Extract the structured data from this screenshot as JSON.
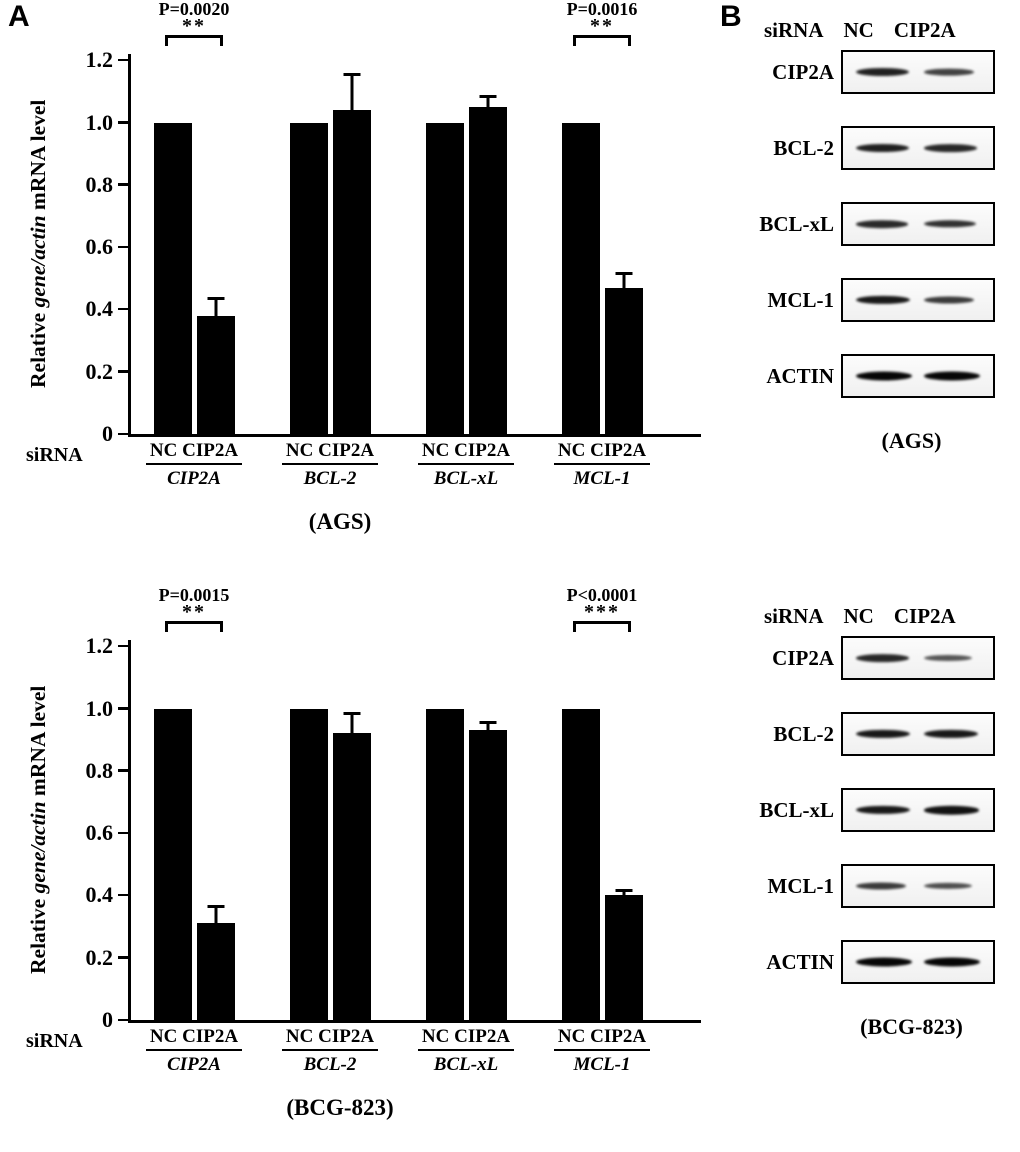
{
  "figure": {
    "panel_a_label": "A",
    "panel_b_label": "B"
  },
  "chart_data": [
    {
      "type": "bar",
      "cell_line": "AGS",
      "title": "(AGS)",
      "ylabel": {
        "pre": "Relative ",
        "italic": "gene/actin",
        "post": " mRNA level"
      },
      "ylim": [
        0,
        1.22
      ],
      "grid": false,
      "bar_color": "#000000",
      "yticks": [
        {
          "v": 0,
          "label": "0"
        },
        {
          "v": 0.2,
          "label": "0.2"
        },
        {
          "v": 0.4,
          "label": "0.4"
        },
        {
          "v": 0.6,
          "label": "0.6"
        },
        {
          "v": 0.8,
          "label": "0.8"
        },
        {
          "v": 1.0,
          "label": "1.0"
        },
        {
          "v": 1.2,
          "label": "1.2"
        }
      ],
      "xaxis_prefix": "siRNA",
      "bar_labels": [
        "NC",
        "CIP2A"
      ],
      "groups": [
        {
          "gene": "CIP2A",
          "values": [
            1.0,
            0.38
          ],
          "errors": [
            0,
            0.05
          ],
          "p_label": "P=0.0020",
          "stars": "**"
        },
        {
          "gene": "BCL-2",
          "values": [
            1.0,
            1.04
          ],
          "errors": [
            0,
            0.11
          ],
          "p_label": "",
          "stars": ""
        },
        {
          "gene": "BCL-xL",
          "values": [
            1.0,
            1.05
          ],
          "errors": [
            0,
            0.03
          ],
          "p_label": "",
          "stars": ""
        },
        {
          "gene": "MCL-1",
          "values": [
            1.0,
            0.47
          ],
          "errors": [
            0,
            0.04
          ],
          "p_label": "P=0.0016",
          "stars": "**"
        }
      ]
    },
    {
      "type": "bar",
      "cell_line": "BCG-823",
      "title": "(BCG-823)",
      "ylabel": {
        "pre": "Relative ",
        "italic": "gene/actin",
        "post": " mRNA level"
      },
      "ylim": [
        0,
        1.22
      ],
      "grid": false,
      "bar_color": "#000000",
      "yticks": [
        {
          "v": 0,
          "label": "0"
        },
        {
          "v": 0.2,
          "label": "0.2"
        },
        {
          "v": 0.4,
          "label": "0.4"
        },
        {
          "v": 0.6,
          "label": "0.6"
        },
        {
          "v": 0.8,
          "label": "0.8"
        },
        {
          "v": 1.0,
          "label": "1.0"
        },
        {
          "v": 1.2,
          "label": "1.2"
        }
      ],
      "xaxis_prefix": "siRNA",
      "bar_labels": [
        "NC",
        "CIP2A"
      ],
      "groups": [
        {
          "gene": "CIP2A",
          "values": [
            1.0,
            0.31
          ],
          "errors": [
            0,
            0.05
          ],
          "p_label": "P=0.0015",
          "stars": "**"
        },
        {
          "gene": "BCL-2",
          "values": [
            1.0,
            0.92
          ],
          "errors": [
            0,
            0.06
          ],
          "p_label": "",
          "stars": ""
        },
        {
          "gene": "BCL-xL",
          "values": [
            1.0,
            0.93
          ],
          "errors": [
            0,
            0.02
          ],
          "p_label": "",
          "stars": ""
        },
        {
          "gene": "MCL-1",
          "values": [
            1.0,
            0.4
          ],
          "errors": [
            0,
            0.01
          ],
          "p_label": "P<0.0001",
          "stars": "***"
        }
      ]
    }
  ],
  "blots": [
    {
      "cell_line": "AGS",
      "header_prefix": "siRNA",
      "lanes": [
        "NC",
        "CIP2A"
      ],
      "rows": [
        {
          "label": "CIP2A",
          "bands": [
            0.8,
            0.55
          ]
        },
        {
          "label": "BCL-2",
          "bands": [
            0.8,
            0.75
          ]
        },
        {
          "label": "BCL-xL",
          "bands": [
            0.72,
            0.68
          ]
        },
        {
          "label": "MCL-1",
          "bands": [
            0.85,
            0.6
          ]
        },
        {
          "label": "ACTIN",
          "bands": [
            1.0,
            1.0
          ]
        }
      ],
      "caption": "(AGS)"
    },
    {
      "cell_line": "BCG-823",
      "header_prefix": "siRNA",
      "lanes": [
        "NC",
        "CIP2A"
      ],
      "rows": [
        {
          "label": "CIP2A",
          "bands": [
            0.75,
            0.4
          ]
        },
        {
          "label": "BCL-2",
          "bands": [
            0.85,
            0.85
          ]
        },
        {
          "label": "BCL-xL",
          "bands": [
            0.85,
            0.9
          ]
        },
        {
          "label": "MCL-1",
          "bands": [
            0.6,
            0.45
          ]
        },
        {
          "label": "ACTIN",
          "bands": [
            1.0,
            1.0
          ]
        }
      ],
      "caption": "(BCG-823)"
    }
  ]
}
